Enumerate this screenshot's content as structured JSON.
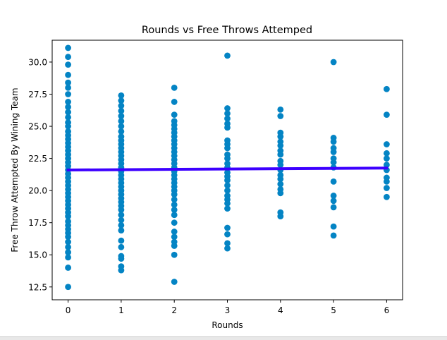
{
  "chart_data": {
    "type": "scatter",
    "title": "Rounds vs Free Throws Attemped",
    "xlabel": "Rounds",
    "ylabel": "Free Throw Attempted By Wining Team",
    "xlim": [
      -0.3,
      6.3
    ],
    "ylim": [
      11.5,
      31.7
    ],
    "xticks": [
      0,
      1,
      2,
      3,
      4,
      5,
      6
    ],
    "xtick_labels": [
      "0",
      "1",
      "2",
      "3",
      "4",
      "5",
      "6"
    ],
    "yticks": [
      12.5,
      15.0,
      17.5,
      20.0,
      22.5,
      25.0,
      27.5,
      30.0
    ],
    "ytick_labels": [
      "12.5",
      "15.0",
      "17.5",
      "20.0",
      "22.5",
      "25.0",
      "27.5",
      "30.0"
    ],
    "grid": false,
    "colors": {
      "points": "#0484c4",
      "fit_line": "#3d00ff"
    },
    "series": [
      {
        "type": "scatter",
        "points": [
          [
            0,
            31.1
          ],
          [
            0,
            30.4
          ],
          [
            0,
            29.8
          ],
          [
            0,
            29.0
          ],
          [
            0,
            28.4
          ],
          [
            0,
            28.0
          ],
          [
            0,
            27.5
          ],
          [
            0,
            26.9
          ],
          [
            0,
            26.5
          ],
          [
            0,
            26.1
          ],
          [
            0,
            25.7
          ],
          [
            0,
            25.3
          ],
          [
            0,
            25.0
          ],
          [
            0,
            24.6
          ],
          [
            0,
            24.3
          ],
          [
            0,
            24.0
          ],
          [
            0,
            23.7
          ],
          [
            0,
            23.4
          ],
          [
            0,
            23.1
          ],
          [
            0,
            22.8
          ],
          [
            0,
            22.5
          ],
          [
            0,
            22.2
          ],
          [
            0,
            21.9
          ],
          [
            0,
            21.6
          ],
          [
            0,
            21.3
          ],
          [
            0,
            21.0
          ],
          [
            0,
            20.7
          ],
          [
            0,
            20.4
          ],
          [
            0,
            20.1
          ],
          [
            0,
            19.8
          ],
          [
            0,
            19.5
          ],
          [
            0,
            19.2
          ],
          [
            0,
            18.9
          ],
          [
            0,
            18.6
          ],
          [
            0,
            18.3
          ],
          [
            0,
            18.0
          ],
          [
            0,
            17.6
          ],
          [
            0,
            17.3
          ],
          [
            0,
            17.0
          ],
          [
            0,
            16.7
          ],
          [
            0,
            16.4
          ],
          [
            0,
            16.0
          ],
          [
            0,
            15.6
          ],
          [
            0,
            15.2
          ],
          [
            0,
            14.8
          ],
          [
            0,
            14.0
          ],
          [
            0,
            12.5
          ],
          [
            1,
            27.4
          ],
          [
            1,
            27.0
          ],
          [
            1,
            26.6
          ],
          [
            1,
            26.2
          ],
          [
            1,
            25.8
          ],
          [
            1,
            25.4
          ],
          [
            1,
            25.0
          ],
          [
            1,
            24.6
          ],
          [
            1,
            24.2
          ],
          [
            1,
            23.9
          ],
          [
            1,
            23.6
          ],
          [
            1,
            23.3
          ],
          [
            1,
            23.0
          ],
          [
            1,
            22.7
          ],
          [
            1,
            22.4
          ],
          [
            1,
            22.1
          ],
          [
            1,
            21.8
          ],
          [
            1,
            21.5
          ],
          [
            1,
            21.2
          ],
          [
            1,
            20.9
          ],
          [
            1,
            20.6
          ],
          [
            1,
            20.3
          ],
          [
            1,
            20.0
          ],
          [
            1,
            19.7
          ],
          [
            1,
            19.4
          ],
          [
            1,
            19.1
          ],
          [
            1,
            18.8
          ],
          [
            1,
            18.5
          ],
          [
            1,
            18.1
          ],
          [
            1,
            17.7
          ],
          [
            1,
            17.3
          ],
          [
            1,
            16.9
          ],
          [
            1,
            16.1
          ],
          [
            1,
            15.6
          ],
          [
            1,
            14.9
          ],
          [
            1,
            14.7
          ],
          [
            1,
            14.1
          ],
          [
            1,
            13.8
          ],
          [
            2,
            28.0
          ],
          [
            2,
            26.9
          ],
          [
            2,
            25.9
          ],
          [
            2,
            25.4
          ],
          [
            2,
            25.1
          ],
          [
            2,
            24.8
          ],
          [
            2,
            24.5
          ],
          [
            2,
            24.2
          ],
          [
            2,
            23.9
          ],
          [
            2,
            23.6
          ],
          [
            2,
            23.3
          ],
          [
            2,
            23.0
          ],
          [
            2,
            22.7
          ],
          [
            2,
            22.4
          ],
          [
            2,
            22.1
          ],
          [
            2,
            21.8
          ],
          [
            2,
            21.5
          ],
          [
            2,
            21.2
          ],
          [
            2,
            20.9
          ],
          [
            2,
            20.6
          ],
          [
            2,
            20.3
          ],
          [
            2,
            20.0
          ],
          [
            2,
            19.7
          ],
          [
            2,
            19.3
          ],
          [
            2,
            18.9
          ],
          [
            2,
            18.5
          ],
          [
            2,
            18.1
          ],
          [
            2,
            17.5
          ],
          [
            2,
            16.8
          ],
          [
            2,
            16.4
          ],
          [
            2,
            16.0
          ],
          [
            2,
            15.7
          ],
          [
            2,
            15.0
          ],
          [
            2,
            12.9
          ],
          [
            3,
            30.5
          ],
          [
            3,
            26.4
          ],
          [
            3,
            26.0
          ],
          [
            3,
            25.6
          ],
          [
            3,
            25.2
          ],
          [
            3,
            24.9
          ],
          [
            3,
            23.9
          ],
          [
            3,
            23.6
          ],
          [
            3,
            23.3
          ],
          [
            3,
            22.8
          ],
          [
            3,
            22.5
          ],
          [
            3,
            22.1
          ],
          [
            3,
            21.8
          ],
          [
            3,
            21.4
          ],
          [
            3,
            21.1
          ],
          [
            3,
            20.8
          ],
          [
            3,
            20.4
          ],
          [
            3,
            20.0
          ],
          [
            3,
            19.6
          ],
          [
            3,
            19.3
          ],
          [
            3,
            19.0
          ],
          [
            3,
            18.6
          ],
          [
            3,
            17.1
          ],
          [
            3,
            16.6
          ],
          [
            3,
            15.9
          ],
          [
            3,
            15.5
          ],
          [
            4,
            26.3
          ],
          [
            4,
            25.8
          ],
          [
            4,
            24.5
          ],
          [
            4,
            24.2
          ],
          [
            4,
            23.8
          ],
          [
            4,
            23.5
          ],
          [
            4,
            23.1
          ],
          [
            4,
            22.8
          ],
          [
            4,
            22.3
          ],
          [
            4,
            22.0
          ],
          [
            4,
            21.6
          ],
          [
            4,
            21.2
          ],
          [
            4,
            20.9
          ],
          [
            4,
            20.5
          ],
          [
            4,
            20.1
          ],
          [
            4,
            19.8
          ],
          [
            4,
            18.3
          ],
          [
            4,
            18.0
          ],
          [
            5,
            30.0
          ],
          [
            5,
            24.1
          ],
          [
            5,
            23.8
          ],
          [
            5,
            23.3
          ],
          [
            5,
            23.0
          ],
          [
            5,
            22.5
          ],
          [
            5,
            22.2
          ],
          [
            5,
            21.8
          ],
          [
            5,
            20.7
          ],
          [
            5,
            19.6
          ],
          [
            5,
            19.2
          ],
          [
            5,
            18.7
          ],
          [
            5,
            17.2
          ],
          [
            5,
            16.5
          ],
          [
            6,
            27.9
          ],
          [
            6,
            25.9
          ],
          [
            6,
            23.6
          ],
          [
            6,
            22.9
          ],
          [
            6,
            22.5
          ],
          [
            6,
            22.0
          ],
          [
            6,
            21.6
          ],
          [
            6,
            21.0
          ],
          [
            6,
            20.7
          ],
          [
            6,
            20.2
          ],
          [
            6,
            19.5
          ]
        ]
      },
      {
        "type": "line",
        "x": [
          0,
          6
        ],
        "y": [
          21.6,
          21.75
        ]
      }
    ]
  }
}
